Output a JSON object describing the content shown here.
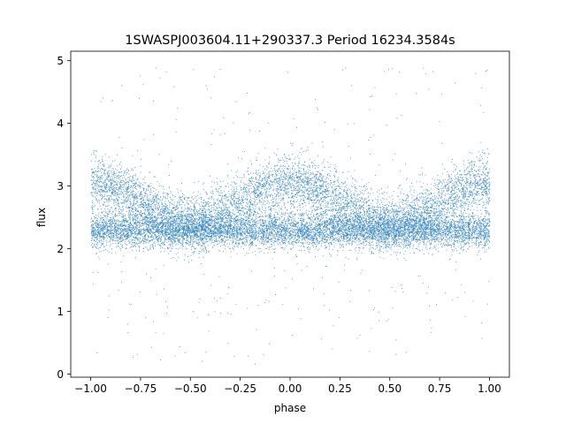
{
  "chart_data": {
    "type": "scatter",
    "title": "1SWASPJ003604.11+290337.3 Period 16234.3584s",
    "xlabel": "phase",
    "ylabel": "flux",
    "xlim": [
      -1.1,
      1.1
    ],
    "ylim": [
      -0.05,
      5.15
    ],
    "xticks": [
      -1.0,
      -0.75,
      -0.5,
      -0.25,
      0.0,
      0.25,
      0.5,
      0.75,
      1.0
    ],
    "xtick_labels": [
      "−1.00",
      "−0.75",
      "−0.50",
      "−0.25",
      "0.00",
      "0.25",
      "0.50",
      "0.75",
      "1.00"
    ],
    "yticks": [
      0,
      1,
      2,
      3,
      4,
      5
    ],
    "ytick_labels": [
      "0",
      "1",
      "2",
      "3",
      "4",
      "5"
    ],
    "grid": false,
    "legend": "none",
    "marker_color": "#1f77b4",
    "description_of_distribution": {
      "phase_range": [
        -1.0,
        1.0
      ],
      "lower_band_center": 2.3,
      "upper_band_center_range": [
        2.45,
        3.05
      ],
      "upper_band_peak_phases": [
        -1.0,
        0.0,
        1.0
      ],
      "upper_band_trough_phases": [
        -0.5,
        0.5
      ],
      "outlier_flux_range": [
        0.15,
        4.9
      ]
    },
    "series": [
      {
        "values_sample": [
          {
            "x": -1.0,
            "y": 2.3
          },
          {
            "x": -1.0,
            "y": 3.0
          },
          {
            "x": -0.5,
            "y": 2.3
          },
          {
            "x": -0.5,
            "y": 2.45
          },
          {
            "x": 0.0,
            "y": 2.3
          },
          {
            "x": 0.0,
            "y": 3.05
          },
          {
            "x": 0.5,
            "y": 2.3
          },
          {
            "x": 0.5,
            "y": 2.45
          },
          {
            "x": 1.0,
            "y": 2.3
          },
          {
            "x": 1.0,
            "y": 3.0
          }
        ]
      }
    ]
  }
}
